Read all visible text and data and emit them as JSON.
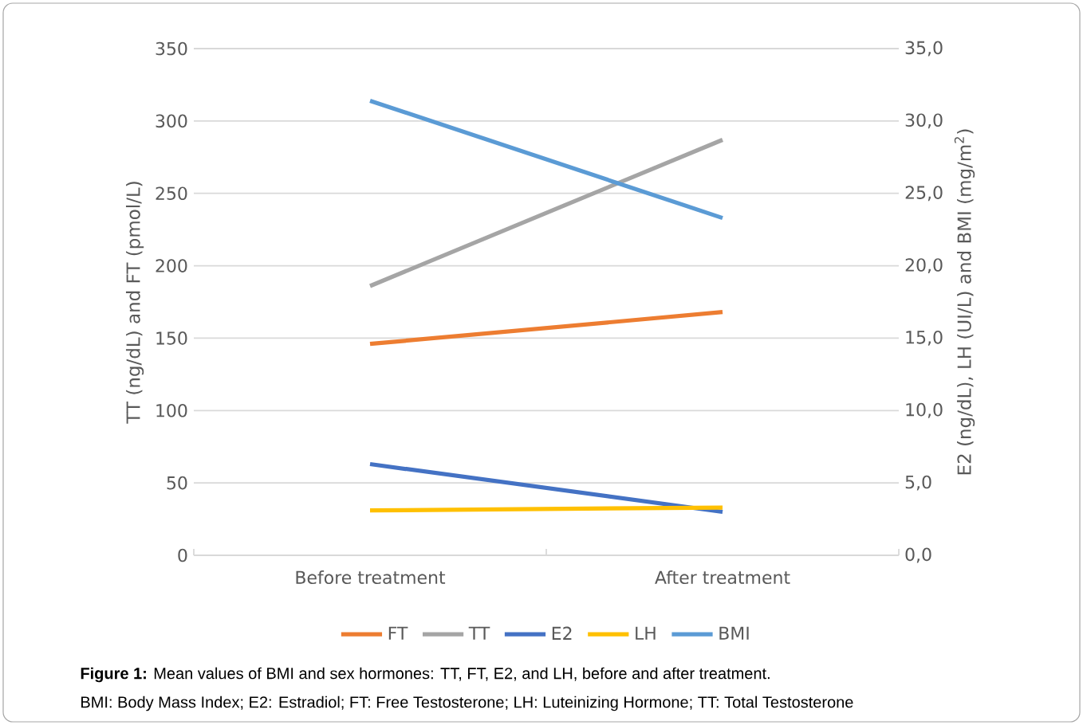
{
  "chart_data": {
    "type": "line",
    "categories": [
      "Before treatment",
      "After treatment"
    ],
    "series": [
      {
        "name": "FT",
        "color": "#ed7d31",
        "values": [
          146,
          168
        ]
      },
      {
        "name": "TT",
        "color": "#a5a5a5",
        "values": [
          186,
          287
        ]
      },
      {
        "name": "E2",
        "color": "#4472c4",
        "values": [
          6.3,
          3.0
        ],
        "axis": "y2"
      },
      {
        "name": "LH",
        "color": "#ffc000",
        "values": [
          3.1,
          3.3
        ],
        "axis": "y2"
      },
      {
        "name": "BMI",
        "color": "#5b9bd5",
        "values": [
          31.4,
          23.3
        ],
        "axis": "y2"
      }
    ],
    "ylabel": "TT (ng/dL) and FT (pmol/L)",
    "y2label": "E2 (ng/dL), LH (UI/L) and BMI (mg/m$^{2}$)",
    "ylim": [
      0,
      350
    ],
    "yticks": [
      0,
      50,
      100,
      150,
      200,
      250,
      300,
      350
    ],
    "y2lim": [
      0,
      35
    ],
    "y2ticks": [
      {
        "value": 0,
        "label": "0,0"
      },
      {
        "value": 5,
        "label": "5,0"
      },
      {
        "value": 10,
        "label": "10,0"
      },
      {
        "value": 15,
        "label": "15,0"
      },
      {
        "value": 20,
        "label": "20,0"
      },
      {
        "value": 25,
        "label": "25,0"
      },
      {
        "value": 30,
        "label": "30,0"
      },
      {
        "value": 35,
        "label": "35,0"
      }
    ],
    "grid": "y",
    "legend": "bottom",
    "marker": "none",
    "line_style": "solid",
    "annotations": [
      "**Figure 1:** Mean values of BMI and sex hormones: TT, FT, E2, and LH, before and after treatment.",
      "BMI: Body Mass Index; E2: Estradiol; FT: Free Testosterone; LH: Luteinizing Hormone; TT: Total Testosterone"
    ]
  }
}
